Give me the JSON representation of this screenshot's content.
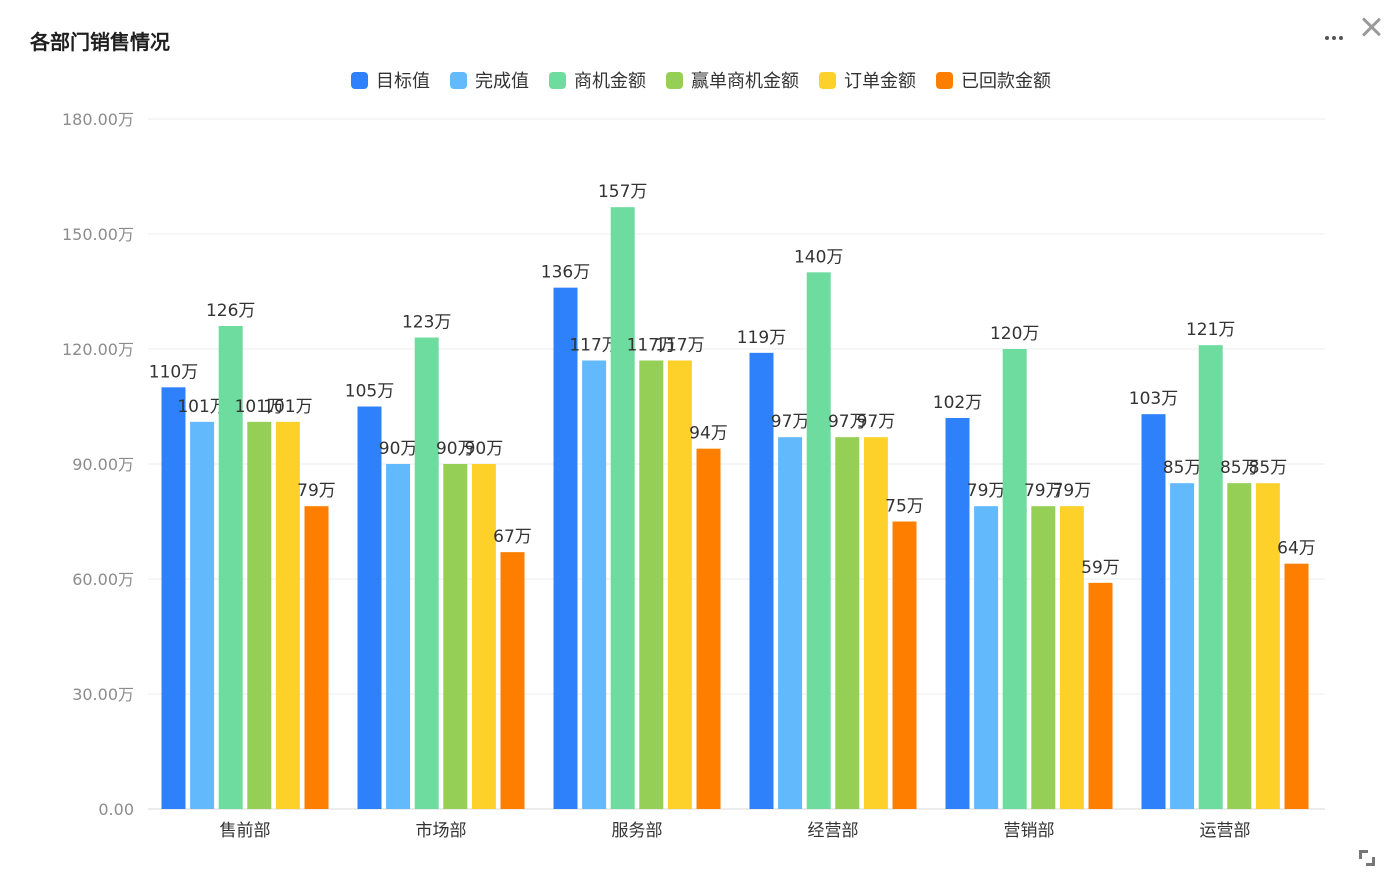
{
  "window": {
    "title": "各部门销售情况",
    "more_icon": "more-horizontal-icon",
    "close_icon": "close-icon",
    "expand_icon": "expand-icon"
  },
  "chart_data": {
    "type": "bar",
    "title": "各部门销售情况",
    "categories": [
      "售前部",
      "市场部",
      "服务部",
      "经营部",
      "营销部",
      "运营部"
    ],
    "series": [
      {
        "name": "目标值",
        "color": "#2f80fb",
        "values": [
          110,
          105,
          136,
          119,
          102,
          103
        ],
        "labels": [
          "110万",
          "105万",
          "136万",
          "119万",
          "102万",
          "103万"
        ]
      },
      {
        "name": "完成值",
        "color": "#62b9fb",
        "values": [
          101,
          90,
          117,
          97,
          79,
          85
        ],
        "labels": [
          "101万",
          "90万",
          "117万",
          "97万",
          "79万",
          "85万"
        ]
      },
      {
        "name": "商机金额",
        "color": "#6edc9f",
        "values": [
          126,
          123,
          157,
          140,
          120,
          121
        ],
        "labels": [
          "126万",
          "123万",
          "157万",
          "140万",
          "120万",
          "121万"
        ]
      },
      {
        "name": "赢单商机金额",
        "color": "#96cf55",
        "values": [
          101,
          90,
          117,
          97,
          79,
          85
        ],
        "labels": [
          "101万",
          "90万",
          "117万",
          "97万",
          "79万",
          "85万"
        ]
      },
      {
        "name": "订单金额",
        "color": "#fed12a",
        "values": [
          101,
          90,
          117,
          97,
          79,
          85
        ],
        "labels": [
          "101万",
          "90万",
          "117万",
          "97万",
          "79万",
          "85万"
        ]
      },
      {
        "name": "已回款金额",
        "color": "#fe7f00",
        "values": [
          79,
          67,
          94,
          75,
          59,
          64
        ],
        "labels": [
          "79万",
          "67万",
          "94万",
          "75万",
          "59万",
          "64万"
        ]
      }
    ],
    "ylim": [
      0,
      180
    ],
    "yticks": [
      0,
      30,
      60,
      90,
      120,
      150,
      180
    ],
    "ytick_labels": [
      "0.00",
      "30.00万",
      "60.00万",
      "90.00万",
      "120.00万",
      "150.00万",
      "180.00万"
    ],
    "grid": true,
    "legend": "top-center"
  }
}
